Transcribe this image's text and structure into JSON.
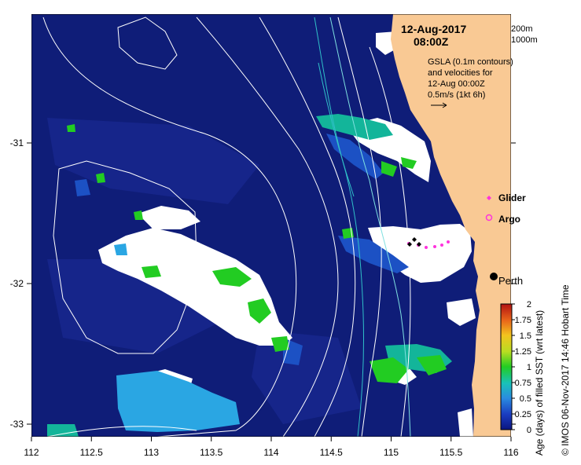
{
  "map": {
    "date": "12-Aug-2017",
    "time": "08:00Z",
    "scale_label_depth1": "200m",
    "scale_label_depth2": "1000m",
    "gsla_line1": "GSLA (0.1m contours)",
    "gsla_line2": "and velocities for",
    "gsla_line3": "12-Aug 00:00Z",
    "velocity_scale": "0.5m/s (1kt 6h)",
    "legend_glider": "Glider",
    "legend_argo": "Argo",
    "city_label": "Perth",
    "credit": "© IMOS 06-Nov-2017 14:46 Hobart Time",
    "x_ticks": [
      "112",
      "112.5",
      "113",
      "113.5",
      "114",
      "114.5",
      "115",
      "115.5",
      "116"
    ],
    "y_ticks": [
      "-31",
      "-32",
      "-33"
    ],
    "colorbar_title": "Age (days) of filled SST (wrt latest)",
    "colorbar_ticks": [
      "0",
      "0.25",
      "0.5",
      "0.75",
      "1",
      "1.25",
      "1.5",
      "1.75",
      "2"
    ],
    "colors": {
      "ocean": "#0f1d78",
      "ocean_light": "#16258a",
      "land": "#f9c994",
      "cloud": "#ffffff",
      "age_green": "#22cc22",
      "age_teal": "#13b59a",
      "age_cyan": "#2aa6e3",
      "age_blue": "#1c51c4",
      "contour": "#ffffff",
      "isobath_200": "#7fe0e0",
      "isobath_1000": "#30c0c8",
      "glider": "#ff33dd",
      "argo": "#ff33dd"
    }
  }
}
